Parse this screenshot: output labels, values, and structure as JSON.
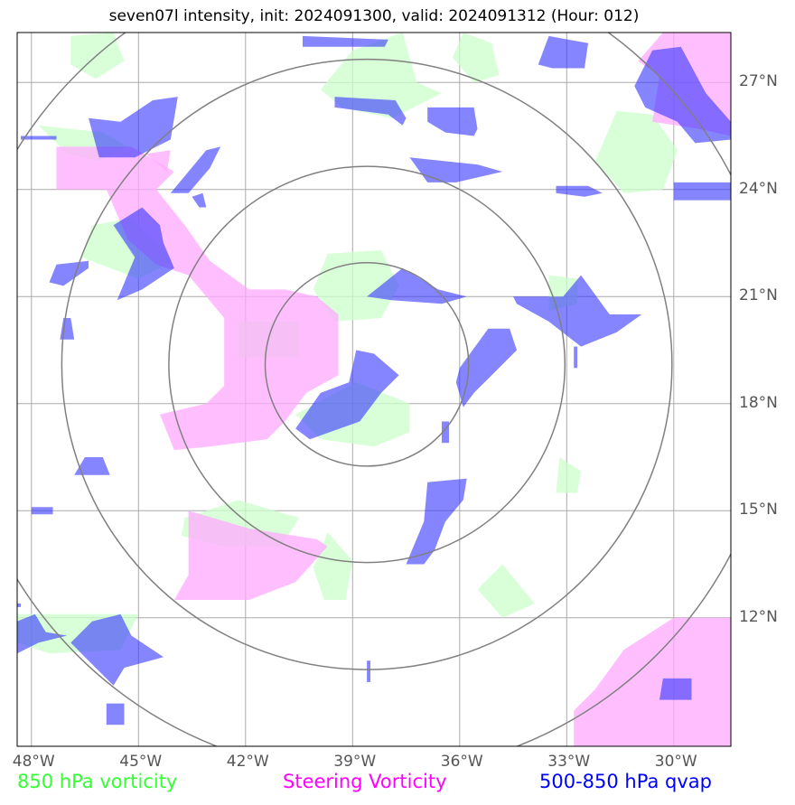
{
  "title": "seven07l intensity, init: 2024091300, valid: 2024091312 (Hour: 012)",
  "colors": {
    "vort850": "#ccffcc",
    "steering": "#ffaaff",
    "qvap": "#3333ff",
    "overlap": "#6633ff",
    "grid": "#aaaaaa",
    "rings": "#808080"
  },
  "map": {
    "lon_range": [
      -48.4,
      -28.4
    ],
    "lat_range": [
      8.4,
      28.4
    ],
    "center": {
      "lon": -38.6,
      "lat": 19.1
    },
    "ring_radii_deg": [
      2.85,
      5.55,
      8.55,
      11.5
    ],
    "x_ticks": [
      {
        "value": -48,
        "label": "48°W"
      },
      {
        "value": -45,
        "label": "45°W"
      },
      {
        "value": -42,
        "label": "42°W"
      },
      {
        "value": -39,
        "label": "39°W"
      },
      {
        "value": -36,
        "label": "36°W"
      },
      {
        "value": -33,
        "label": "33°W"
      },
      {
        "value": -30,
        "label": "30°W"
      }
    ],
    "y_ticks": [
      {
        "value": 27,
        "label": "27°N"
      },
      {
        "value": 24,
        "label": "24°N"
      },
      {
        "value": 21,
        "label": "21°N"
      },
      {
        "value": 18,
        "label": "18°N"
      },
      {
        "value": 15,
        "label": "15°N"
      },
      {
        "value": 12,
        "label": "12°N"
      }
    ]
  },
  "fields": {
    "vort850": [
      [
        [
          -46.9,
          28.3
        ],
        [
          -45.7,
          28.4
        ],
        [
          -45.4,
          27.6
        ],
        [
          -46.2,
          27.1
        ],
        [
          -46.9,
          27.5
        ]
      ],
      [
        [
          -35.9,
          28.4
        ],
        [
          -35.1,
          28.1
        ],
        [
          -34.9,
          27.2
        ],
        [
          -35.6,
          27.0
        ],
        [
          -36.2,
          27.7
        ]
      ],
      [
        [
          -39.0,
          27.9
        ],
        [
          -37.6,
          28.4
        ],
        [
          -37.2,
          27.0
        ],
        [
          -36.5,
          26.7
        ],
        [
          -37.9,
          26.0
        ],
        [
          -39.3,
          26.3
        ],
        [
          -39.9,
          26.8
        ]
      ],
      [
        [
          -47.8,
          25.8
        ],
        [
          -46.0,
          25.6
        ],
        [
          -45.3,
          25.2
        ],
        [
          -46.1,
          24.8
        ],
        [
          -47.0,
          25.0
        ]
      ],
      [
        [
          -32.2,
          24.8
        ],
        [
          -31.6,
          26.2
        ],
        [
          -30.6,
          26.1
        ],
        [
          -29.9,
          25.1
        ],
        [
          -30.3,
          24.0
        ],
        [
          -31.4,
          23.9
        ]
      ],
      [
        [
          -46.3,
          23.0
        ],
        [
          -45.2,
          23.2
        ],
        [
          -44.0,
          22.0
        ],
        [
          -45.0,
          21.5
        ],
        [
          -46.6,
          22.1
        ]
      ],
      [
        [
          -39.7,
          22.2
        ],
        [
          -38.2,
          22.3
        ],
        [
          -37.7,
          21.3
        ],
        [
          -38.2,
          20.4
        ],
        [
          -39.5,
          20.3
        ],
        [
          -40.1,
          21.2
        ]
      ],
      [
        [
          -33.5,
          21.6
        ],
        [
          -32.7,
          21.5
        ],
        [
          -32.7,
          20.8
        ],
        [
          -33.5,
          20.6
        ]
      ],
      [
        [
          -42.2,
          20.3
        ],
        [
          -40.5,
          20.3
        ],
        [
          -40.5,
          19.3
        ],
        [
          -42.2,
          19.3
        ]
      ],
      [
        [
          -38.9,
          18.6
        ],
        [
          -37.4,
          18.0
        ],
        [
          -37.4,
          17.2
        ],
        [
          -38.4,
          16.8
        ],
        [
          -39.9,
          17.0
        ],
        [
          -40.6,
          17.7
        ]
      ],
      [
        [
          -33.2,
          16.5
        ],
        [
          -32.6,
          16.1
        ],
        [
          -32.7,
          15.5
        ],
        [
          -33.3,
          15.5
        ]
      ],
      [
        [
          -43.7,
          14.8
        ],
        [
          -42.2,
          15.3
        ],
        [
          -40.5,
          14.8
        ],
        [
          -41.0,
          14.0
        ],
        [
          -42.6,
          14.0
        ],
        [
          -43.8,
          14.3
        ]
      ],
      [
        [
          -39.7,
          14.4
        ],
        [
          -39.0,
          13.6
        ],
        [
          -39.2,
          12.5
        ],
        [
          -39.8,
          12.5
        ],
        [
          -40.1,
          13.4
        ]
      ],
      [
        [
          -34.8,
          13.5
        ],
        [
          -33.9,
          12.4
        ],
        [
          -34.8,
          12.0
        ],
        [
          -35.5,
          12.8
        ]
      ],
      [
        [
          -48.4,
          12.1
        ],
        [
          -45.0,
          12.1
        ],
        [
          -45.5,
          11.1
        ],
        [
          -47.5,
          11.0
        ],
        [
          -48.4,
          11.3
        ]
      ]
    ],
    "steering": [
      [
        [
          -30.3,
          28.4
        ],
        [
          -28.4,
          28.4
        ],
        [
          -28.4,
          25.5
        ],
        [
          -29.3,
          25.7
        ],
        [
          -30.6,
          25.9
        ],
        [
          -30.4,
          27.2
        ],
        [
          -31.0,
          27.6
        ]
      ],
      [
        [
          -47.3,
          25.2
        ],
        [
          -45.2,
          25.2
        ],
        [
          -44.0,
          24.5
        ],
        [
          -44.5,
          24.0
        ],
        [
          -43.7,
          23.0
        ],
        [
          -43.0,
          22.0
        ],
        [
          -41.9,
          21.2
        ],
        [
          -40.9,
          21.2
        ],
        [
          -40.0,
          21.0
        ],
        [
          -39.4,
          20.5
        ],
        [
          -39.4,
          18.8
        ],
        [
          -40.3,
          18.3
        ],
        [
          -40.9,
          17.5
        ],
        [
          -41.4,
          17.0
        ],
        [
          -43.0,
          16.8
        ],
        [
          -44.0,
          16.7
        ],
        [
          -44.4,
          17.7
        ],
        [
          -43.1,
          18.0
        ],
        [
          -42.6,
          18.5
        ],
        [
          -42.6,
          20.4
        ],
        [
          -43.6,
          21.6
        ],
        [
          -44.5,
          21.9
        ],
        [
          -45.3,
          22.6
        ],
        [
          -45.9,
          24.0
        ],
        [
          -47.3,
          24.0
        ]
      ],
      [
        [
          -44.1,
          25.1
        ],
        [
          -44.8,
          25.0
        ],
        [
          -44.2,
          24.5
        ]
      ],
      [
        [
          -43.6,
          15.0
        ],
        [
          -41.9,
          14.5
        ],
        [
          -40.0,
          14.2
        ],
        [
          -39.7,
          14.0
        ],
        [
          -40.6,
          13.0
        ],
        [
          -41.9,
          12.5
        ],
        [
          -44.0,
          12.5
        ],
        [
          -43.6,
          13.2
        ]
      ],
      [
        [
          -31.4,
          11.1
        ],
        [
          -30.0,
          12.0
        ],
        [
          -28.4,
          12.0
        ],
        [
          -28.4,
          8.4
        ],
        [
          -32.8,
          8.4
        ],
        [
          -32.8,
          9.4
        ],
        [
          -32.2,
          10.0
        ]
      ]
    ],
    "qvap": [
      [
        [
          -48.3,
          25.4
        ],
        [
          -47.3,
          25.4
        ],
        [
          -47.3,
          25.5
        ],
        [
          -48.3,
          25.5
        ]
      ],
      [
        [
          -40.4,
          28.3
        ],
        [
          -38.0,
          28.2
        ],
        [
          -38.1,
          28.0
        ],
        [
          -40.4,
          28.0
        ]
      ],
      [
        [
          -45.5,
          25.9
        ],
        [
          -44.6,
          26.5
        ],
        [
          -43.9,
          26.6
        ],
        [
          -44.1,
          25.4
        ],
        [
          -45.1,
          24.9
        ],
        [
          -46.1,
          24.9
        ],
        [
          -46.4,
          26.0
        ]
      ],
      [
        [
          -33.5,
          28.3
        ],
        [
          -32.4,
          28.1
        ],
        [
          -32.5,
          27.4
        ],
        [
          -33.4,
          27.4
        ],
        [
          -33.8,
          27.5
        ]
      ],
      [
        [
          -39.5,
          26.6
        ],
        [
          -37.8,
          26.5
        ],
        [
          -37.5,
          26.0
        ],
        [
          -37.6,
          25.8
        ],
        [
          -38.0,
          26.1
        ],
        [
          -39.5,
          26.3
        ]
      ],
      [
        [
          -36.9,
          26.3
        ],
        [
          -35.6,
          26.3
        ],
        [
          -35.5,
          25.7
        ],
        [
          -35.6,
          25.5
        ],
        [
          -36.4,
          25.6
        ],
        [
          -36.9,
          25.9
        ]
      ],
      [
        [
          -30.6,
          27.9
        ],
        [
          -29.8,
          28.0
        ],
        [
          -29.1,
          26.7
        ],
        [
          -28.4,
          25.9
        ],
        [
          -28.4,
          25.4
        ],
        [
          -29.4,
          25.3
        ],
        [
          -29.9,
          25.9
        ],
        [
          -30.8,
          26.3
        ],
        [
          -31.1,
          26.9
        ]
      ],
      [
        [
          -44.1,
          23.9
        ],
        [
          -43.1,
          25.1
        ],
        [
          -42.7,
          25.2
        ],
        [
          -43.0,
          24.6
        ],
        [
          -43.6,
          23.9
        ]
      ],
      [
        [
          -37.4,
          24.9
        ],
        [
          -35.5,
          24.7
        ],
        [
          -34.8,
          24.5
        ],
        [
          -36.1,
          24.2
        ],
        [
          -36.9,
          24.2
        ]
      ],
      [
        [
          -33.3,
          24.1
        ],
        [
          -32.4,
          24.1
        ],
        [
          -32.0,
          23.9
        ],
        [
          -32.5,
          23.8
        ],
        [
          -33.3,
          23.9
        ]
      ],
      [
        [
          -30.0,
          24.2
        ],
        [
          -28.4,
          24.2
        ],
        [
          -28.4,
          23.7
        ],
        [
          -30.0,
          23.7
        ]
      ],
      [
        [
          -45.7,
          23.0
        ],
        [
          -44.9,
          23.5
        ],
        [
          -44.4,
          23.0
        ],
        [
          -44.3,
          22.5
        ],
        [
          -44.0,
          21.8
        ],
        [
          -44.9,
          21.2
        ],
        [
          -45.6,
          20.9
        ],
        [
          -45.1,
          22.1
        ]
      ],
      [
        [
          -43.5,
          23.8
        ],
        [
          -43.2,
          23.9
        ],
        [
          -43.1,
          23.5
        ],
        [
          -43.3,
          23.5
        ]
      ],
      [
        [
          -47.3,
          21.9
        ],
        [
          -46.4,
          22.0
        ],
        [
          -46.4,
          21.8
        ],
        [
          -47.1,
          21.3
        ],
        [
          -47.5,
          21.4
        ]
      ],
      [
        [
          -37.6,
          21.8
        ],
        [
          -36.6,
          21.2
        ],
        [
          -35.8,
          21.0
        ],
        [
          -36.5,
          20.8
        ],
        [
          -37.9,
          20.9
        ],
        [
          -38.6,
          21.0
        ]
      ],
      [
        [
          -34.5,
          21.0
        ],
        [
          -33.1,
          21.0
        ],
        [
          -32.6,
          21.6
        ],
        [
          -31.8,
          20.5
        ],
        [
          -30.9,
          20.5
        ],
        [
          -31.6,
          20.0
        ],
        [
          -32.6,
          19.6
        ],
        [
          -33.5,
          20.3
        ],
        [
          -34.4,
          20.8
        ]
      ],
      [
        [
          -32.8,
          19.6
        ],
        [
          -32.7,
          19.6
        ],
        [
          -32.7,
          19.0
        ],
        [
          -32.8,
          19.0
        ]
      ],
      [
        [
          -47.1,
          20.4
        ],
        [
          -46.9,
          20.4
        ],
        [
          -46.8,
          19.8
        ],
        [
          -47.2,
          19.8
        ]
      ],
      [
        [
          -38.9,
          19.5
        ],
        [
          -38.4,
          19.4
        ],
        [
          -37.7,
          18.8
        ],
        [
          -38.2,
          18.3
        ],
        [
          -38.8,
          17.5
        ],
        [
          -40.2,
          17.0
        ],
        [
          -40.6,
          17.3
        ],
        [
          -39.9,
          18.3
        ],
        [
          -39.1,
          18.6
        ]
      ],
      [
        [
          -35.2,
          20.1
        ],
        [
          -34.6,
          20.1
        ],
        [
          -34.4,
          19.5
        ],
        [
          -35.0,
          18.9
        ],
        [
          -35.6,
          18.3
        ],
        [
          -35.9,
          17.9
        ],
        [
          -36.1,
          18.6
        ],
        [
          -36.0,
          19.0
        ]
      ],
      [
        [
          -36.5,
          17.5
        ],
        [
          -36.3,
          17.5
        ],
        [
          -36.3,
          16.9
        ],
        [
          -36.5,
          16.9
        ]
      ],
      [
        [
          -46.5,
          16.5
        ],
        [
          -46.0,
          16.5
        ],
        [
          -45.8,
          16.0
        ],
        [
          -46.8,
          16.0
        ]
      ],
      [
        [
          -48.0,
          15.1
        ],
        [
          -47.4,
          15.1
        ],
        [
          -47.4,
          14.9
        ],
        [
          -48.0,
          14.9
        ]
      ],
      [
        [
          -36.9,
          15.8
        ],
        [
          -35.8,
          15.9
        ],
        [
          -35.9,
          15.3
        ],
        [
          -36.4,
          14.7
        ],
        [
          -36.7,
          13.9
        ],
        [
          -37.0,
          13.5
        ],
        [
          -37.5,
          13.5
        ],
        [
          -37.0,
          14.7
        ]
      ],
      [
        [
          -48.4,
          11.9
        ],
        [
          -47.9,
          12.1
        ],
        [
          -47.6,
          11.6
        ],
        [
          -47.0,
          11.5
        ],
        [
          -47.8,
          11.3
        ],
        [
          -48.4,
          11.0
        ]
      ],
      [
        [
          -46.3,
          11.9
        ],
        [
          -45.5,
          12.1
        ],
        [
          -45.2,
          11.5
        ],
        [
          -44.3,
          10.9
        ],
        [
          -45.4,
          10.6
        ],
        [
          -45.7,
          10.1
        ],
        [
          -46.4,
          10.8
        ],
        [
          -46.9,
          11.3
        ]
      ],
      [
        [
          -48.4,
          12.4
        ],
        [
          -48.3,
          12.4
        ],
        [
          -48.3,
          12.3
        ],
        [
          -48.4,
          12.3
        ]
      ],
      [
        [
          -38.6,
          10.8
        ],
        [
          -38.5,
          10.8
        ],
        [
          -38.5,
          10.2
        ],
        [
          -38.6,
          10.2
        ]
      ],
      [
        [
          -45.9,
          9.6
        ],
        [
          -45.4,
          9.6
        ],
        [
          -45.4,
          9.0
        ],
        [
          -45.9,
          9.0
        ]
      ],
      [
        [
          -30.3,
          10.3
        ],
        [
          -29.5,
          10.3
        ],
        [
          -29.5,
          9.7
        ],
        [
          -30.4,
          9.7
        ]
      ]
    ]
  },
  "legend": {
    "vort850": {
      "label": "850 hPa vorticity",
      "color": "#33ff33"
    },
    "steering": {
      "label": "Steering Vorticity",
      "color": "#ff00ff"
    },
    "qvap": {
      "label": "500-850 hPa qvap",
      "color": "#0000ff"
    }
  }
}
